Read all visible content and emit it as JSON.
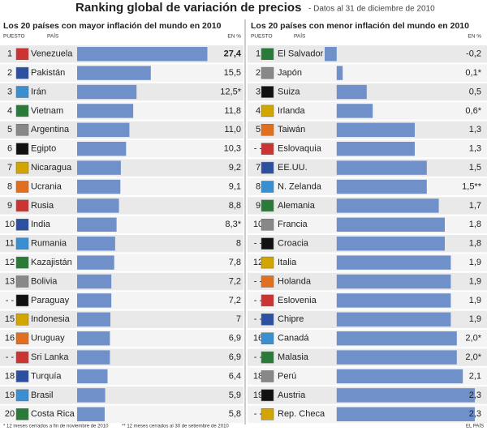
{
  "title": "Ranking global de variación de precios",
  "subtitle": "- Datos al 31 de diciembre de 2010",
  "footnotes": [
    "* 12 meses cerrados a fin de noviembre de 2010",
    "** 12 meses cerrados al 30 de setiembre de 2010"
  ],
  "source": "EL PAÍS",
  "chart_data": [
    {
      "type": "bar",
      "orientation": "horizontal",
      "title": "Los 20 países con mayor inflación del mundo en 2010",
      "columns": [
        "PUESTO",
        "PAÍS",
        "EN %"
      ],
      "color": "#6f90c8",
      "xlim": [
        0,
        28
      ],
      "ranks": [
        "1",
        "2",
        "3",
        "4",
        "5",
        "6",
        "7",
        "8",
        "9",
        "10",
        "11",
        "12",
        "13",
        "- -",
        "15",
        "16",
        "- -",
        "18",
        "19",
        "20"
      ],
      "categories": [
        "Venezuela",
        "Pakistán",
        "Irán",
        "Vietnam",
        "Argentina",
        "Egipto",
        "Nicaragua",
        "Ucrania",
        "Rusia",
        "India",
        "Rumania",
        "Kazajistán",
        "Bolivia",
        "Paraguay",
        "Indonesia",
        "Uruguay",
        "Sri Lanka",
        "Turquía",
        "Brasil",
        "Costa Rica"
      ],
      "values": [
        27.4,
        15.5,
        12.5,
        11.8,
        11.0,
        10.3,
        9.2,
        9.1,
        8.8,
        8.3,
        8,
        7.8,
        7.2,
        7.2,
        7,
        6.9,
        6.9,
        6.4,
        5.9,
        5.8
      ],
      "value_labels": [
        "27,4",
        "15,5",
        "12,5*",
        "11,8",
        "11,0",
        "10,3",
        "9,2",
        "9,1",
        "8,8",
        "8,3*",
        "8",
        "7,8",
        "7,2",
        "7,2",
        "7",
        "6,9",
        "6,9",
        "6,4",
        "5,9",
        "5,8"
      ]
    },
    {
      "type": "bar",
      "orientation": "horizontal",
      "title": "Los 20 países con menor inflación del mundo en 2010",
      "columns": [
        "PUESTO",
        "PAÍS",
        "EN %"
      ],
      "color": "#6f90c8",
      "xlim": [
        -0.2,
        2.3
      ],
      "ranks": [
        "1",
        "2",
        "3",
        "4",
        "5",
        "- -",
        "7",
        "8",
        "9",
        "10",
        "- -",
        "12",
        "- -",
        "- -",
        "- -",
        "16",
        "- -",
        "18",
        "19",
        "- -"
      ],
      "categories": [
        "El Salvador",
        "Japón",
        "Suiza",
        "Irlanda",
        "Taiwán",
        "Eslovaquia",
        "EE.UU.",
        "N. Zelanda",
        "Alemania",
        "Francia",
        "Croacia",
        "Italia",
        "Holanda",
        "Eslovenia",
        "Chipre",
        "Canadá",
        "Malasia",
        "Perú",
        "Austria",
        "Rep. Checa"
      ],
      "values": [
        -0.2,
        0.1,
        0.5,
        0.6,
        1.3,
        1.3,
        1.5,
        1.5,
        1.7,
        1.8,
        1.8,
        1.9,
        1.9,
        1.9,
        1.9,
        2.0,
        2.0,
        2.1,
        2.3,
        2.3
      ],
      "value_labels": [
        "-0,2",
        "0,1*",
        "0,5",
        "0,6*",
        "1,3",
        "1,3",
        "1,5",
        "1,5**",
        "1,7",
        "1,8",
        "1,8",
        "1,9",
        "1,9",
        "1,9",
        "1,9",
        "2,0*",
        "2,0*",
        "2,1",
        "2,3",
        "2,3"
      ]
    }
  ]
}
